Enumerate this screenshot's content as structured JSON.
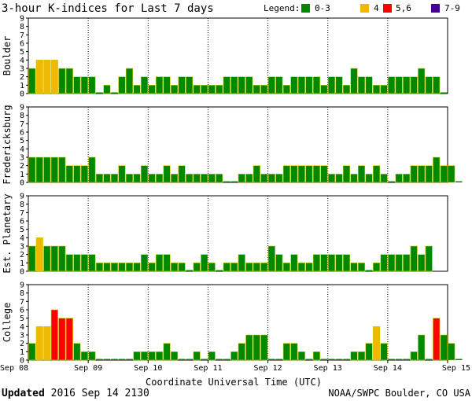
{
  "title": "3-hour K-indices for Last 7 days",
  "legend": {
    "label": "Legend:",
    "items": [
      {
        "label": "0-3",
        "color": "#008800"
      },
      {
        "label": "4",
        "color": "#f0b800"
      },
      {
        "label": "5,6",
        "color": "#ff0000"
      },
      {
        "label": "7-9",
        "color": "#440099"
      }
    ]
  },
  "colors": {
    "k0_3": "#008800",
    "k4": "#f0b800",
    "k5_6": "#ff0000",
    "k7_9": "#440099",
    "bar_edge": "#cccc00"
  },
  "xlabel": "Coordinate Universal Time (UTC)",
  "footer": {
    "updated_label": "Updated",
    "updated_value": "2016 Sep 14 2130",
    "source": "NOAA/SWPC Boulder, CO USA"
  },
  "chart_data": {
    "type": "bar",
    "y_ticks": [
      "0",
      "1",
      "2",
      "3",
      "4",
      "5",
      "6",
      "7",
      "8",
      "9"
    ],
    "ylim": [
      0,
      9
    ],
    "x_ticks": [
      "Sep 08",
      "Sep 09",
      "Sep 10",
      "Sep 11",
      "Sep 12",
      "Sep 13",
      "Sep 14",
      "Sep 15"
    ],
    "intervals_per_day": 8,
    "panels": [
      {
        "name": "Boulder",
        "values": [
          3,
          4,
          4,
          4,
          3,
          3,
          2,
          2,
          2,
          0,
          1,
          0,
          2,
          3,
          1,
          2,
          1,
          2,
          2,
          1,
          2,
          2,
          1,
          1,
          1,
          1,
          2,
          2,
          2,
          2,
          1,
          1,
          2,
          2,
          1,
          2,
          2,
          2,
          2,
          1,
          2,
          2,
          1,
          3,
          2,
          2,
          1,
          1,
          2,
          2,
          2,
          2,
          3,
          2,
          2,
          0
        ]
      },
      {
        "name": "Fredericksburg",
        "values": [
          3,
          3,
          3,
          3,
          3,
          2,
          2,
          2,
          3,
          1,
          1,
          1,
          2,
          1,
          1,
          2,
          1,
          1,
          2,
          1,
          2,
          1,
          1,
          1,
          1,
          1,
          0,
          0,
          1,
          1,
          2,
          1,
          1,
          1,
          2,
          2,
          2,
          2,
          2,
          2,
          1,
          1,
          2,
          1,
          2,
          1,
          2,
          1,
          0,
          1,
          1,
          2,
          2,
          2,
          3,
          2,
          2,
          0
        ]
      },
      {
        "name": "Est. Planetary",
        "values": [
          3,
          4,
          3,
          3,
          3,
          2,
          2,
          2,
          2,
          1,
          1,
          1,
          1,
          1,
          1,
          2,
          1,
          2,
          2,
          1,
          1,
          0,
          1,
          2,
          1,
          0,
          1,
          1,
          2,
          1,
          1,
          1,
          3,
          2,
          1,
          2,
          1,
          1,
          2,
          2,
          2,
          2,
          2,
          1,
          1,
          0,
          1,
          2,
          2,
          2,
          2,
          3,
          2,
          3
        ]
      },
      {
        "name": "College",
        "values": [
          2,
          4,
          4,
          6,
          5,
          5,
          2,
          1,
          1,
          0,
          0,
          0,
          0,
          0,
          1,
          1,
          1,
          1,
          2,
          1,
          0,
          0,
          1,
          0,
          1,
          0,
          0,
          1,
          2,
          3,
          3,
          3,
          0,
          0,
          2,
          2,
          1,
          0,
          1,
          0,
          0,
          0,
          0,
          1,
          1,
          2,
          4,
          2,
          0,
          0,
          0,
          1,
          3,
          0,
          5,
          3,
          2,
          0
        ]
      }
    ]
  }
}
